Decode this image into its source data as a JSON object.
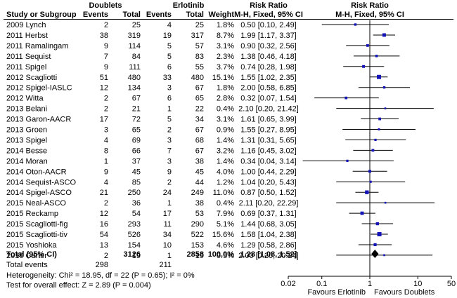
{
  "chart_data": {
    "type": "forest",
    "headers": {
      "study": "Study or Subgroup",
      "group1": "Doublets",
      "group2": "Erlotinib",
      "events": "Events",
      "total": "Total",
      "weight": "Weight",
      "rr_title": "Risk Ratio",
      "rr_method": "M-H, Fixed, 95% CI"
    },
    "studies": [
      {
        "name": "2009 Lynch",
        "e1": 2,
        "n1": 25,
        "e2": 4,
        "n2": 25,
        "weight": "1.8%",
        "rr": 0.5,
        "lo": 0.1,
        "hi": 2.49,
        "ci_text": "0.50 [0.10, 2.49]"
      },
      {
        "name": "2011 Herbst",
        "e1": 38,
        "n1": 319,
        "e2": 19,
        "n2": 317,
        "weight": "8.7%",
        "rr": 1.99,
        "lo": 1.17,
        "hi": 3.37,
        "ci_text": "1.99 [1.17, 3.37]"
      },
      {
        "name": "2011 Ramalingam",
        "e1": 9,
        "n1": 114,
        "e2": 5,
        "n2": 57,
        "weight": "3.1%",
        "rr": 0.9,
        "lo": 0.32,
        "hi": 2.56,
        "ci_text": "0.90 [0.32, 2.56]"
      },
      {
        "name": "2011 Sequist",
        "e1": 7,
        "n1": 84,
        "e2": 5,
        "n2": 83,
        "weight": "2.3%",
        "rr": 1.38,
        "lo": 0.46,
        "hi": 4.18,
        "ci_text": "1.38 [0.46, 4.18]"
      },
      {
        "name": "2011 Spigel",
        "e1": 9,
        "n1": 111,
        "e2": 6,
        "n2": 55,
        "weight": "3.7%",
        "rr": 0.74,
        "lo": 0.28,
        "hi": 1.98,
        "ci_text": "0.74 [0.28, 1.98]"
      },
      {
        "name": "2012 Scagliotti",
        "e1": 51,
        "n1": 480,
        "e2": 33,
        "n2": 480,
        "weight": "15.1%",
        "rr": 1.55,
        "lo": 1.02,
        "hi": 2.35,
        "ci_text": "1.55 [1.02, 2.35]"
      },
      {
        "name": "2012 Spigel-IASLC",
        "e1": 12,
        "n1": 134,
        "e2": 3,
        "n2": 67,
        "weight": "1.8%",
        "rr": 2.0,
        "lo": 0.58,
        "hi": 6.85,
        "ci_text": "2.00 [0.58, 6.85]"
      },
      {
        "name": "2012 Witta",
        "e1": 2,
        "n1": 67,
        "e2": 6,
        "n2": 65,
        "weight": "2.8%",
        "rr": 0.32,
        "lo": 0.07,
        "hi": 1.54,
        "ci_text": "0.32 [0.07, 1.54]"
      },
      {
        "name": "2013 Belani",
        "e1": 2,
        "n1": 21,
        "e2": 1,
        "n2": 22,
        "weight": "0.4%",
        "rr": 2.1,
        "lo": 0.2,
        "hi": 21.42,
        "ci_text": "2.10 [0.20, 21.42]"
      },
      {
        "name": "2013 Garon-AACR",
        "e1": 17,
        "n1": 72,
        "e2": 5,
        "n2": 34,
        "weight": "3.1%",
        "rr": 1.61,
        "lo": 0.65,
        "hi": 3.99,
        "ci_text": "1.61 [0.65, 3.99]"
      },
      {
        "name": "2013 Groen",
        "e1": 3,
        "n1": 65,
        "e2": 2,
        "n2": 67,
        "weight": "0.9%",
        "rr": 1.55,
        "lo": 0.27,
        "hi": 8.95,
        "ci_text": "1.55 [0.27, 8.95]"
      },
      {
        "name": "2013 Spigel",
        "e1": 4,
        "n1": 69,
        "e2": 3,
        "n2": 68,
        "weight": "1.4%",
        "rr": 1.31,
        "lo": 0.31,
        "hi": 5.65,
        "ci_text": "1.31 [0.31, 5.65]"
      },
      {
        "name": "2014 Besse",
        "e1": 8,
        "n1": 66,
        "e2": 7,
        "n2": 67,
        "weight": "3.2%",
        "rr": 1.16,
        "lo": 0.45,
        "hi": 3.02,
        "ci_text": "1.16 [0.45, 3.02]"
      },
      {
        "name": "2014 Moran",
        "e1": 1,
        "n1": 37,
        "e2": 3,
        "n2": 38,
        "weight": "1.4%",
        "rr": 0.34,
        "lo": 0.04,
        "hi": 3.14,
        "ci_text": "0.34 [0.04, 3.14]"
      },
      {
        "name": "2014 Oton-AACR",
        "e1": 9,
        "n1": 45,
        "e2": 9,
        "n2": 45,
        "weight": "4.0%",
        "rr": 1.0,
        "lo": 0.44,
        "hi": 2.29,
        "ci_text": "1.00 [0.44, 2.29]"
      },
      {
        "name": "2014 Sequist-ASCO",
        "e1": 4,
        "n1": 85,
        "e2": 2,
        "n2": 44,
        "weight": "1.2%",
        "rr": 1.04,
        "lo": 0.2,
        "hi": 5.43,
        "ci_text": "1.04 [0.20, 5.43]"
      },
      {
        "name": "2014 Spigel-ASCO",
        "e1": 21,
        "n1": 250,
        "e2": 24,
        "n2": 249,
        "weight": "11.0%",
        "rr": 0.87,
        "lo": 0.5,
        "hi": 1.52,
        "ci_text": "0.87 [0.50, 1.52]"
      },
      {
        "name": "2015 Neal-ASCO",
        "e1": 2,
        "n1": 36,
        "e2": 1,
        "n2": 38,
        "weight": "0.4%",
        "rr": 2.11,
        "lo": 0.2,
        "hi": 22.29,
        "ci_text": "2.11 [0.20, 22.29]"
      },
      {
        "name": "2015 Reckamp",
        "e1": 12,
        "n1": 54,
        "e2": 17,
        "n2": 53,
        "weight": "7.9%",
        "rr": 0.69,
        "lo": 0.37,
        "hi": 1.31,
        "ci_text": "0.69 [0.37, 1.31]"
      },
      {
        "name": "2015 Scagliotti-fig",
        "e1": 16,
        "n1": 293,
        "e2": 11,
        "n2": 290,
        "weight": "5.1%",
        "rr": 1.44,
        "lo": 0.68,
        "hi": 3.05,
        "ci_text": "1.44 [0.68, 3.05]"
      },
      {
        "name": "2015 Scagliotti-tiv",
        "e1": 54,
        "n1": 526,
        "e2": 34,
        "n2": 522,
        "weight": "15.6%",
        "rr": 1.58,
        "lo": 1.04,
        "hi": 2.38,
        "ci_text": "1.58 [1.04, 2.38]"
      },
      {
        "name": "2015 Yoshioka",
        "e1": 13,
        "n1": 154,
        "e2": 10,
        "n2": 153,
        "weight": "4.6%",
        "rr": 1.29,
        "lo": 0.58,
        "hi": 2.86,
        "ci_text": "1.29 [0.58, 2.86]"
      },
      {
        "name": "2016 Carter",
        "e1": 2,
        "n1": 19,
        "e2": 1,
        "n2": 19,
        "weight": "0.5%",
        "rr": 2.0,
        "lo": 0.2,
        "hi": 20.24,
        "ci_text": "2.00 [0.20, 20.24]"
      }
    ],
    "total": {
      "label": "Total (95% CI)",
      "n1": 3126,
      "n2": 2858,
      "weight": "100.0%",
      "rr": 1.28,
      "lo": 1.08,
      "hi": 1.52,
      "ci_text": "1.28 [1.08, 1.52]"
    },
    "total_events": {
      "label": "Total events",
      "e1": 298,
      "e2": 211
    },
    "heterogeneity": "Heterogeneity: Chi² = 18.95, df = 22 (P = 0.65); I² = 0%",
    "overall_effect": "Test for overall effect: Z = 2.89 (P = 0.004)",
    "axis": {
      "scale": "log",
      "range": [
        0.02,
        50
      ],
      "ticks": [
        0.02,
        0.1,
        1,
        10,
        50
      ],
      "tick_labels": [
        "0.02",
        "0.1",
        "1",
        "10",
        "50"
      ],
      "left_label": "Favours Erlotinib",
      "right_label": "Favours Doublets"
    },
    "colors": {
      "marker": "#1414b8",
      "line": "#000000",
      "diamond": "#000000"
    }
  }
}
